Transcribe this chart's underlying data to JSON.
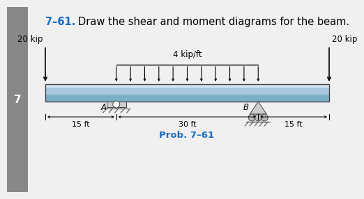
{
  "title_num": "7–61.",
  "title_num_color": "#1a6bbf",
  "title_text": "Draw the shear and moment diagrams for the beam.",
  "title_color": "#000000",
  "title_fontsize": 10.5,
  "prob_label": "Prob. 7–61",
  "prob_color": "#1a6bbf",
  "prob_fontsize": 9.5,
  "sidebar_color": "#888888",
  "sidebar_label": "7",
  "sidebar_label_color": "#ffffff",
  "sidebar_label_fontsize": 11,
  "beam_color_top": "#cfe2f0",
  "beam_color_mid": "#a8c8df",
  "beam_color_bot": "#7aafc8",
  "beam_edge_color": "#444444",
  "load_dist_label": "4 kip/ft",
  "load_label_fontsize": 8.5,
  "load_n_arrows": 11,
  "left_force_label": "20 kip",
  "right_force_label": "20 kip",
  "force_fontsize": 8.5,
  "support_A_label": "A",
  "support_B_label": "B",
  "support_fontsize": 8.5,
  "dim_left_label": "—15 ft—",
  "dim_mid_label": "— 30 ft—",
  "dim_right_label": "—15 ft —",
  "dim_fontsize": 8.0,
  "background_color": "#f0f0f0"
}
